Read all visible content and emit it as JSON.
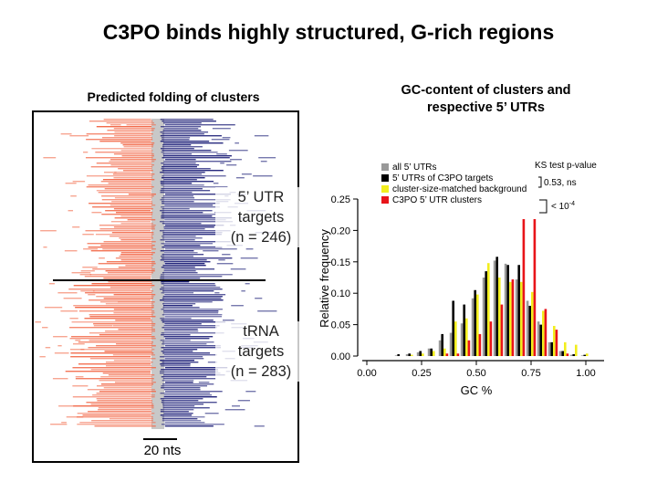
{
  "slide": {
    "title": "C3PO binds highly structured, G-rich regions"
  },
  "left_panel": {
    "heading": "Predicted folding of clusters",
    "groups": [
      {
        "name": "5’ UTR\ntargets\n(n = 246)"
      },
      {
        "name": "tRNA\ntargets\n(n = 283)"
      }
    ],
    "scale_bar_label": "20 nts",
    "colors": {
      "paired_left": "#f26a4a",
      "paired_right": "#1d1f78",
      "center": "#c8c8c8"
    }
  },
  "right_panel": {
    "heading": "GC-content of clusters and\nrespective 5’ UTRs"
  },
  "chart_data": {
    "type": "bar",
    "xlabel": "GC %",
    "ylabel": "Relative frequency",
    "xlim": [
      0.0,
      1.05
    ],
    "ylim": [
      0.0,
      0.25
    ],
    "xticks": [
      "0.00",
      "0.25",
      "0.50",
      "0.75",
      "1.00"
    ],
    "yticks": [
      "0.00",
      "0.05",
      "0.10",
      "0.15",
      "0.20",
      "0.25"
    ],
    "grid": false,
    "legend_position": "top-left",
    "bins": [
      0.15,
      0.2,
      0.25,
      0.3,
      0.35,
      0.4,
      0.45,
      0.5,
      0.55,
      0.6,
      0.65,
      0.7,
      0.75,
      0.8,
      0.85,
      0.9,
      0.95,
      1.0
    ],
    "series": [
      {
        "name": "all 5’ UTRs",
        "color": "#999999",
        "values": [
          0.001,
          0.003,
          0.006,
          0.012,
          0.025,
          0.037,
          0.052,
          0.092,
          0.125,
          0.152,
          0.147,
          0.122,
          0.088,
          0.055,
          0.022,
          0.008,
          0.002,
          0.001
        ]
      },
      {
        "name": "5’ UTRs of C3PO targets",
        "color": "#000000",
        "values": [
          0.003,
          0.004,
          0.008,
          0.012,
          0.035,
          0.088,
          0.082,
          0.105,
          0.135,
          0.158,
          0.145,
          0.145,
          0.08,
          0.05,
          0.022,
          0.008,
          0.003,
          0.002
        ]
      },
      {
        "name": "cluster-size-matched background",
        "color": "#f2ee1e",
        "values": [
          0.0,
          0.002,
          0.004,
          0.008,
          0.012,
          0.055,
          0.06,
          0.098,
          0.148,
          0.125,
          0.118,
          0.118,
          0.102,
          0.072,
          0.048,
          0.022,
          0.018,
          0.004
        ]
      },
      {
        "name": "C3PO 5’ UTR clusters",
        "color": "#e8141a",
        "values": [
          0.0,
          0.0,
          0.0,
          0.0,
          0.004,
          0.004,
          0.025,
          0.035,
          0.055,
          0.082,
          0.122,
          0.218,
          0.218,
          0.075,
          0.042,
          0.004,
          0.0,
          0.0
        ]
      }
    ],
    "annotations": {
      "ks_header": "KS test p-value",
      "ks_value_1": "0.53, ns",
      "ks_value_2": "< 10",
      "ks_value_2_exp": "-4"
    }
  }
}
